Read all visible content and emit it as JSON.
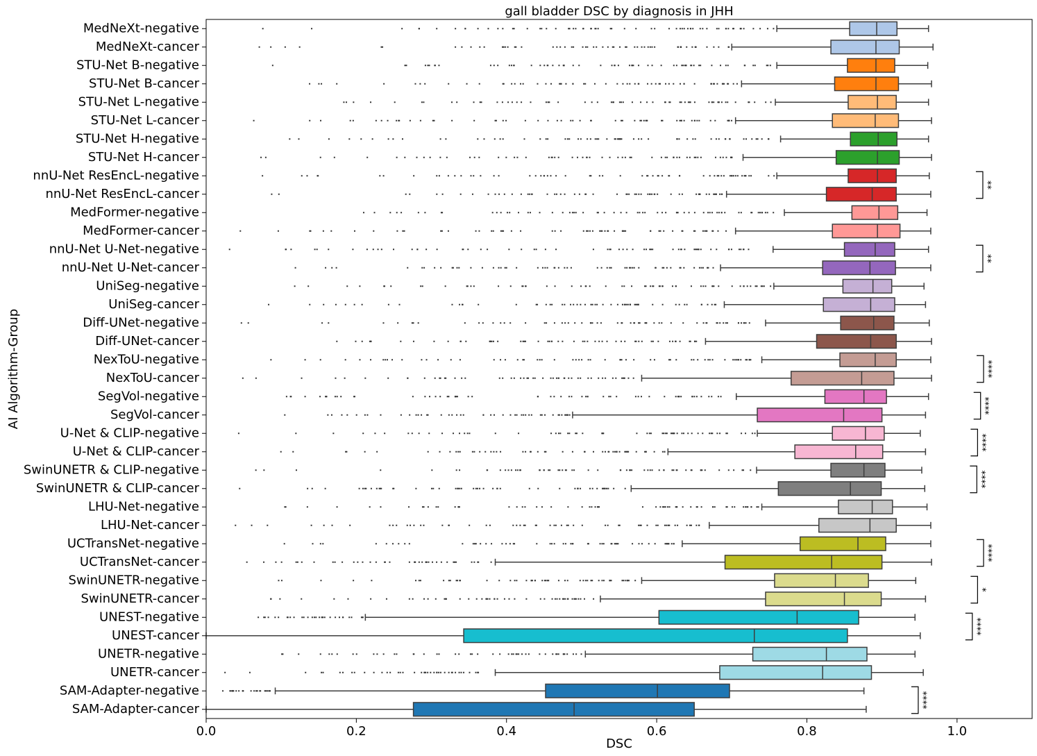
{
  "chart_data": {
    "type": "boxplot",
    "title": "gall bladder DSC by diagnosis in JHH",
    "xlabel": "DSC",
    "ylabel": "AI Algorithm-Group",
    "xlim": [
      0.0,
      1.1
    ],
    "xticks": [
      0.0,
      0.2,
      0.4,
      0.6,
      0.8,
      1.0
    ],
    "xtick_labels": [
      "0.0",
      "0.2",
      "0.4",
      "0.6",
      "0.8",
      "1.0"
    ],
    "groups": [
      {
        "label": "MedNeXt-negative",
        "color": "#aec7e8",
        "whisker_low": 0.76,
        "q1": 0.857,
        "median": 0.893,
        "q3": 0.92,
        "whisker_high": 0.962
      },
      {
        "label": "MedNeXt-cancer",
        "color": "#aec7e8",
        "whisker_low": 0.7,
        "q1": 0.832,
        "median": 0.892,
        "q3": 0.923,
        "whisker_high": 0.968
      },
      {
        "label": "STU-Net B-negative",
        "color": "#ff7f0e",
        "whisker_low": 0.76,
        "q1": 0.854,
        "median": 0.892,
        "q3": 0.917,
        "whisker_high": 0.961
      },
      {
        "label": "STU-Net B-cancer",
        "color": "#ff7f0e",
        "whisker_low": 0.713,
        "q1": 0.837,
        "median": 0.892,
        "q3": 0.922,
        "whisker_high": 0.966
      },
      {
        "label": "STU-Net L-negative",
        "color": "#ffbb78",
        "whisker_low": 0.758,
        "q1": 0.855,
        "median": 0.894,
        "q3": 0.919,
        "whisker_high": 0.962
      },
      {
        "label": "STU-Net L-cancer",
        "color": "#ffbb78",
        "whisker_low": 0.705,
        "q1": 0.834,
        "median": 0.891,
        "q3": 0.922,
        "whisker_high": 0.966
      },
      {
        "label": "STU-Net H-negative",
        "color": "#2ca02c",
        "whisker_low": 0.765,
        "q1": 0.858,
        "median": 0.895,
        "q3": 0.92,
        "whisker_high": 0.962
      },
      {
        "label": "STU-Net H-cancer",
        "color": "#2ca02c",
        "whisker_low": 0.715,
        "q1": 0.839,
        "median": 0.894,
        "q3": 0.923,
        "whisker_high": 0.966
      },
      {
        "label": "nnU-Net ResEncL-negative",
        "color": "#d62728",
        "whisker_low": 0.76,
        "q1": 0.855,
        "median": 0.894,
        "q3": 0.919,
        "whisker_high": 0.963
      },
      {
        "label": "nnU-Net ResEncL-cancer",
        "color": "#d62728",
        "whisker_low": 0.693,
        "q1": 0.826,
        "median": 0.887,
        "q3": 0.919,
        "whisker_high": 0.965
      },
      {
        "label": "MedFormer-negative",
        "color": "#ff9896",
        "whisker_low": 0.77,
        "q1": 0.86,
        "median": 0.896,
        "q3": 0.921,
        "whisker_high": 0.96
      },
      {
        "label": "MedFormer-cancer",
        "color": "#ff9896",
        "whisker_low": 0.705,
        "q1": 0.834,
        "median": 0.894,
        "q3": 0.924,
        "whisker_high": 0.965
      },
      {
        "label": "nnU-Net U-Net-negative",
        "color": "#9467bd",
        "whisker_low": 0.755,
        "q1": 0.85,
        "median": 0.891,
        "q3": 0.917,
        "whisker_high": 0.962
      },
      {
        "label": "nnU-Net U-Net-cancer",
        "color": "#9467bd",
        "whisker_low": 0.685,
        "q1": 0.821,
        "median": 0.884,
        "q3": 0.918,
        "whisker_high": 0.965
      },
      {
        "label": "UniSeg-negative",
        "color": "#c5b0d5",
        "whisker_low": 0.756,
        "q1": 0.848,
        "median": 0.888,
        "q3": 0.913,
        "whisker_high": 0.956
      },
      {
        "label": "UniSeg-cancer",
        "color": "#c5b0d5",
        "whisker_low": 0.69,
        "q1": 0.822,
        "median": 0.885,
        "q3": 0.917,
        "whisker_high": 0.958
      },
      {
        "label": "Diff-UNet-negative",
        "color": "#8c564b",
        "whisker_low": 0.745,
        "q1": 0.845,
        "median": 0.889,
        "q3": 0.916,
        "whisker_high": 0.963
      },
      {
        "label": "Diff-UNet-cancer",
        "color": "#8c564b",
        "whisker_low": 0.665,
        "q1": 0.813,
        "median": 0.885,
        "q3": 0.919,
        "whisker_high": 0.966
      },
      {
        "label": "NexToU-negative",
        "color": "#c49c94",
        "whisker_low": 0.74,
        "q1": 0.844,
        "median": 0.891,
        "q3": 0.919,
        "whisker_high": 0.965
      },
      {
        "label": "NexToU-cancer",
        "color": "#c49c94",
        "whisker_low": 0.58,
        "q1": 0.779,
        "median": 0.873,
        "q3": 0.916,
        "whisker_high": 0.966
      },
      {
        "label": "SegVol-negative",
        "color": "#e377c2",
        "whisker_low": 0.706,
        "q1": 0.824,
        "median": 0.876,
        "q3": 0.906,
        "whisker_high": 0.962
      },
      {
        "label": "SegVol-cancer",
        "color": "#e377c2",
        "whisker_low": 0.488,
        "q1": 0.734,
        "median": 0.849,
        "q3": 0.9,
        "whisker_high": 0.958
      },
      {
        "label": "U-Net & CLIP-negative",
        "color": "#f7b6d2",
        "whisker_low": 0.734,
        "q1": 0.834,
        "median": 0.878,
        "q3": 0.903,
        "whisker_high": 0.951
      },
      {
        "label": "U-Net & CLIP-cancer",
        "color": "#f7b6d2",
        "whisker_low": 0.615,
        "q1": 0.784,
        "median": 0.865,
        "q3": 0.901,
        "whisker_high": 0.958
      },
      {
        "label": "SwinUNETR & CLIP-negative",
        "color": "#7f7f7f",
        "whisker_low": 0.733,
        "q1": 0.832,
        "median": 0.876,
        "q3": 0.904,
        "whisker_high": 0.953
      },
      {
        "label": "SwinUNETR & CLIP-cancer",
        "color": "#7f7f7f",
        "whisker_low": 0.566,
        "q1": 0.762,
        "median": 0.858,
        "q3": 0.899,
        "whisker_high": 0.957
      },
      {
        "label": "LHU-Net-negative",
        "color": "#c7c7c7",
        "whisker_low": 0.74,
        "q1": 0.842,
        "median": 0.887,
        "q3": 0.914,
        "whisker_high": 0.96
      },
      {
        "label": "LHU-Net-cancer",
        "color": "#c7c7c7",
        "whisker_low": 0.67,
        "q1": 0.816,
        "median": 0.884,
        "q3": 0.919,
        "whisker_high": 0.965
      },
      {
        "label": "UCTransNet-negative",
        "color": "#bcbd22",
        "whisker_low": 0.634,
        "q1": 0.791,
        "median": 0.868,
        "q3": 0.905,
        "whisker_high": 0.965
      },
      {
        "label": "UCTransNet-cancer",
        "color": "#bcbd22",
        "whisker_low": 0.385,
        "q1": 0.691,
        "median": 0.833,
        "q3": 0.9,
        "whisker_high": 0.966
      },
      {
        "label": "SwinUNETR-negative",
        "color": "#dbdb8d",
        "whisker_low": 0.58,
        "q1": 0.757,
        "median": 0.838,
        "q3": 0.882,
        "whisker_high": 0.945
      },
      {
        "label": "SwinUNETR-cancer",
        "color": "#dbdb8d",
        "whisker_low": 0.525,
        "q1": 0.745,
        "median": 0.85,
        "q3": 0.899,
        "whisker_high": 0.958
      },
      {
        "label": "UNEST-negative",
        "color": "#17becf",
        "whisker_low": 0.212,
        "q1": 0.603,
        "median": 0.787,
        "q3": 0.869,
        "whisker_high": 0.944
      },
      {
        "label": "UNEST-cancer",
        "color": "#17becf",
        "whisker_low": 0.0,
        "q1": 0.343,
        "median": 0.73,
        "q3": 0.854,
        "whisker_high": 0.951
      },
      {
        "label": "UNETR-negative",
        "color": "#9edae5",
        "whisker_low": 0.505,
        "q1": 0.728,
        "median": 0.826,
        "q3": 0.88,
        "whisker_high": 0.944
      },
      {
        "label": "UNETR-cancer",
        "color": "#9edae5",
        "whisker_low": 0.385,
        "q1": 0.684,
        "median": 0.821,
        "q3": 0.886,
        "whisker_high": 0.955
      },
      {
        "label": "SAM-Adapter-negative",
        "color": "#1f77b4",
        "whisker_low": 0.092,
        "q1": 0.452,
        "median": 0.601,
        "q3": 0.697,
        "whisker_high": 0.876
      },
      {
        "label": "SAM-Adapter-cancer",
        "color": "#1f77b4",
        "whisker_low": 0.0,
        "q1": 0.276,
        "median": 0.49,
        "q3": 0.65,
        "whisker_high": 0.879
      }
    ],
    "significance": [
      {
        "pair": [
          "nnU-Net ResEncL-negative",
          "nnU-Net ResEncL-cancer"
        ],
        "label": "**"
      },
      {
        "pair": [
          "nnU-Net U-Net-negative",
          "nnU-Net U-Net-cancer"
        ],
        "label": "**"
      },
      {
        "pair": [
          "NexToU-negative",
          "NexToU-cancer"
        ],
        "label": "****"
      },
      {
        "pair": [
          "SegVol-negative",
          "SegVol-cancer"
        ],
        "label": "****"
      },
      {
        "pair": [
          "U-Net & CLIP-negative",
          "U-Net & CLIP-cancer"
        ],
        "label": "****"
      },
      {
        "pair": [
          "SwinUNETR & CLIP-negative",
          "SwinUNETR & CLIP-cancer"
        ],
        "label": "****"
      },
      {
        "pair": [
          "UCTransNet-negative",
          "UCTransNet-cancer"
        ],
        "label": "****"
      },
      {
        "pair": [
          "SwinUNETR-negative",
          "SwinUNETR-cancer"
        ],
        "label": "*"
      },
      {
        "pair": [
          "UNEST-negative",
          "UNEST-cancer"
        ],
        "label": "****"
      },
      {
        "pair": [
          "SAM-Adapter-negative",
          "SAM-Adapter-cancer"
        ],
        "label": "****"
      }
    ]
  }
}
